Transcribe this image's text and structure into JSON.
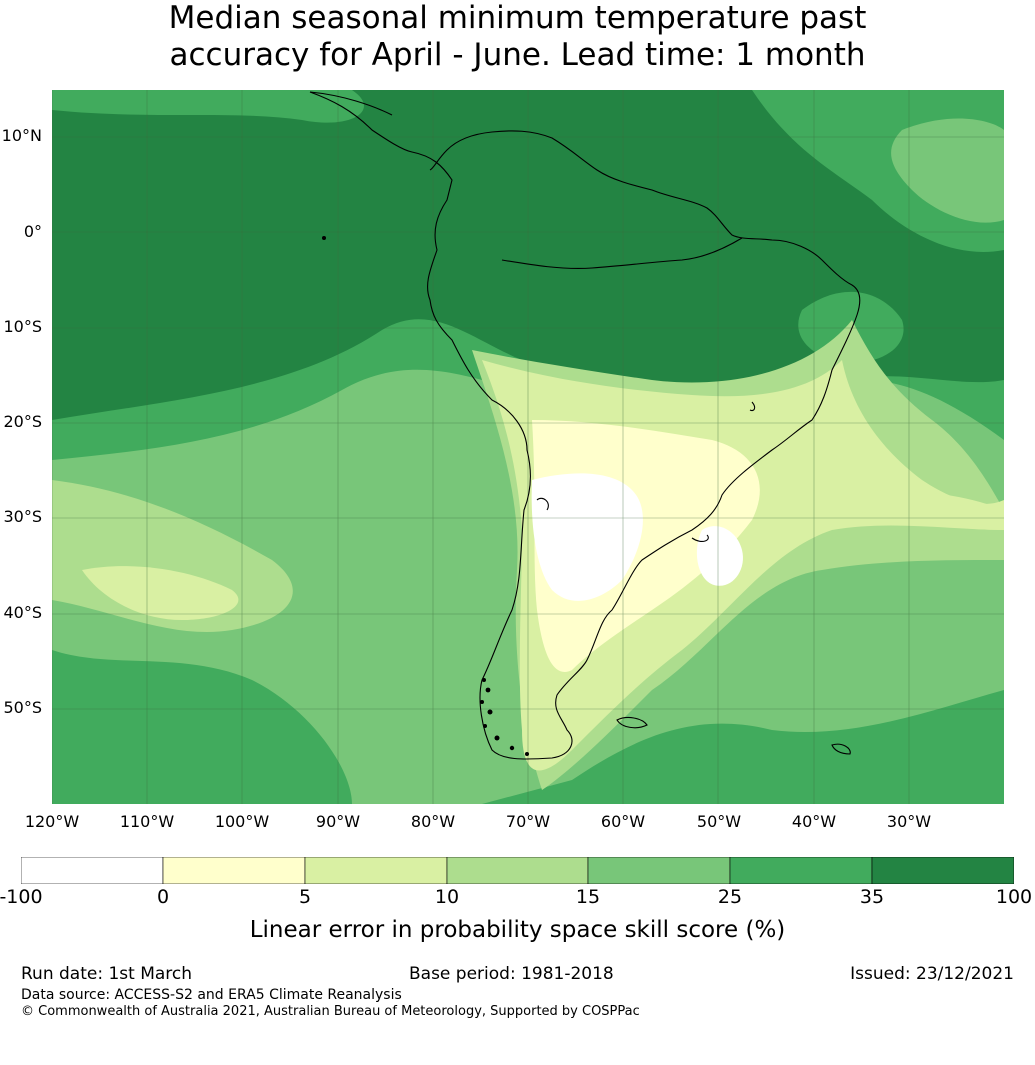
{
  "title_line1": "Median seasonal minimum temperature past",
  "title_line2": "accuracy for April - June. Lead time: 1 month",
  "map": {
    "lat_labels": [
      "10°N",
      "0°",
      "10°S",
      "20°S",
      "30°S",
      "40°S",
      "50°S"
    ],
    "lon_labels": [
      "120°W",
      "110°W",
      "100°W",
      "90°W",
      "80°W",
      "70°W",
      "60°W",
      "50°W",
      "40°W",
      "30°W"
    ],
    "land_outline_color": "#000000",
    "grid_color": "#6b8f6b"
  },
  "colorbar": {
    "ticks": [
      "-100",
      "0",
      "5",
      "10",
      "15",
      "25",
      "35",
      "100"
    ],
    "colors": [
      "#ffffff",
      "#ffffcc",
      "#d9f0a3",
      "#addd8e",
      "#78c679",
      "#41ab5d",
      "#238443"
    ],
    "label": "Linear error in probability space skill score (%)"
  },
  "footer": {
    "run_date": "Run date: 1st March",
    "base_period": "Base period: 1981-2018",
    "issued": "Issued: 23/12/2021",
    "data_source": "Data source: ACCESS-S2 and ERA5 Climate Reanalysis",
    "copyright": "© Commonwealth of Australia 2021, Australian Bureau of Meteorology, Supported by COSPPac"
  }
}
